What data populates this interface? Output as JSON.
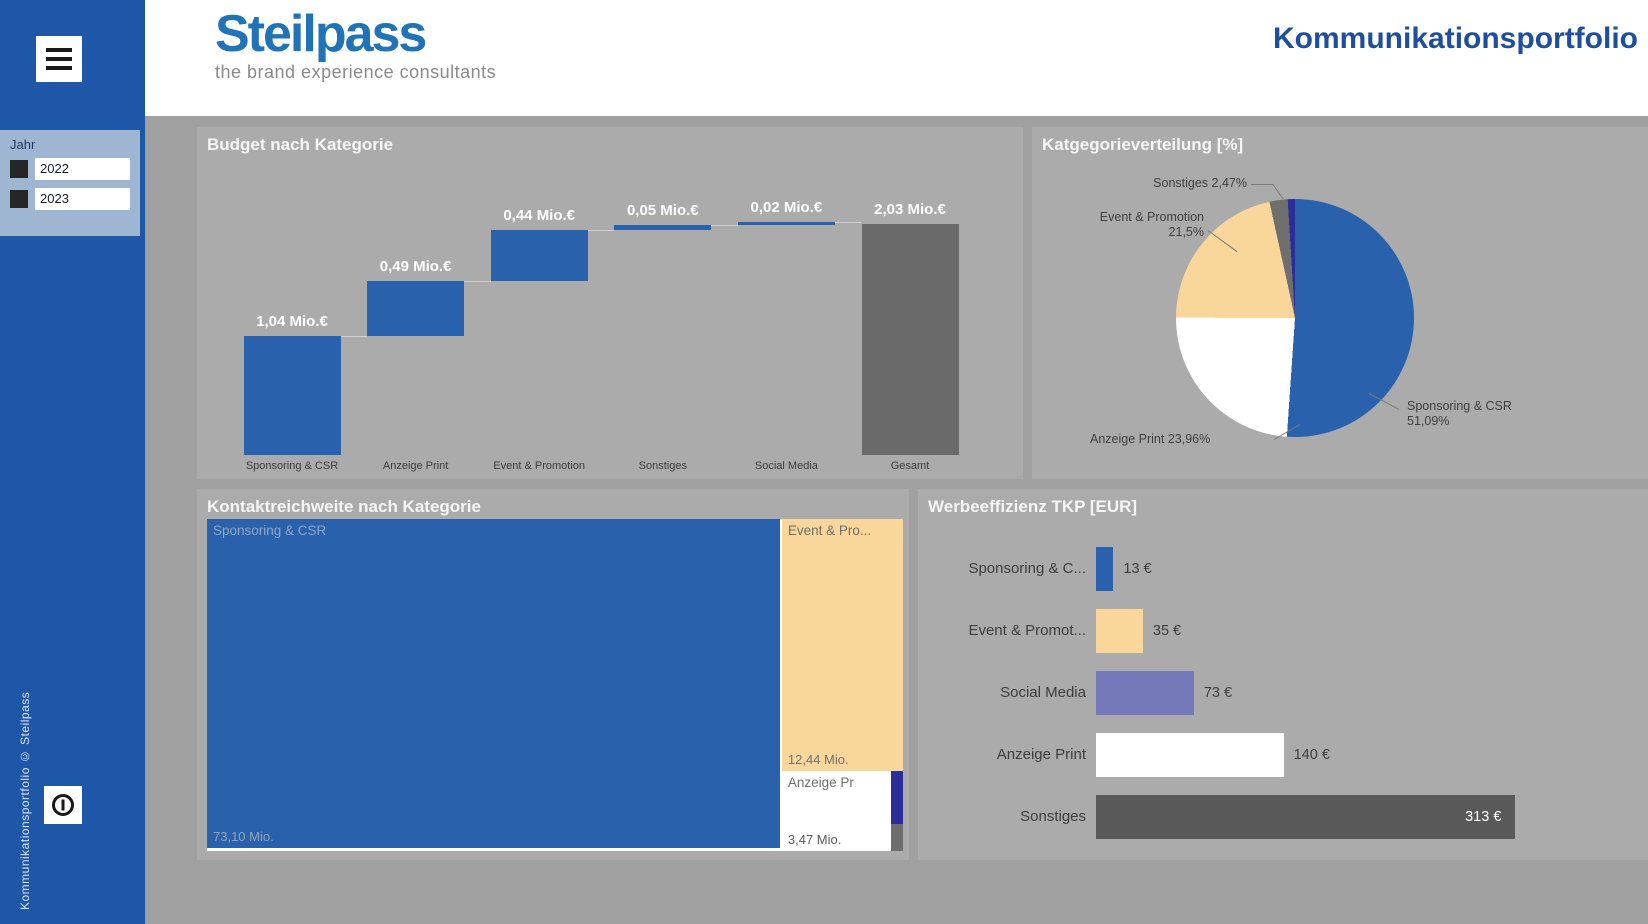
{
  "header": {
    "logo_text": "Steilpass",
    "logo_tagline": "the brand experience consultants",
    "report_title": "Kommunikationsportfolio"
  },
  "sidebar": {
    "slicer": {
      "label": "Jahr",
      "options": [
        {
          "label": "2022",
          "checked": false
        },
        {
          "label": "2023",
          "checked": false
        }
      ]
    },
    "footer_text": "Kommunikationsportfolio © Steilpass"
  },
  "colors": {
    "sidebar_blue": "#1F57A8",
    "accent_blue": "#2A61AC",
    "cream": "#F9D79B",
    "purple": "#7579BA",
    "navy": "#2B2E99",
    "total_gray": "#6A6A6A",
    "dark_gray": "#595959",
    "pie_gray": "#6E6E6E",
    "title_navy": "#1F4E9F",
    "logo_blue": "#2173B8",
    "slicer_bg": "#9FB6D2"
  },
  "chart_data": [
    {
      "type": "bar",
      "subtype": "waterfall",
      "title": "Budget nach Kategorie",
      "categories": [
        "Sponsoring & CSR",
        "Anzeige Print",
        "Event & Promotion",
        "Sonstiges",
        "Social Media",
        "Gesamt"
      ],
      "values": [
        1.04,
        0.49,
        0.44,
        0.05,
        0.02,
        2.03
      ],
      "value_labels": [
        "1,04 Mio.€",
        "0,49 Mio.€",
        "0,44 Mio.€",
        "0,05 Mio.€",
        "0,02 Mio.€",
        "2,03 Mio.€"
      ],
      "is_total": [
        false,
        false,
        false,
        false,
        false,
        true
      ],
      "bar_colors": [
        "#2A61AC",
        "#2A61AC",
        "#2A61AC",
        "#2A61AC",
        "#2A61AC",
        "#6A6A6A"
      ],
      "unit": "Mio.€",
      "ylim": [
        0,
        2.03
      ],
      "grid": false,
      "legend": "none"
    },
    {
      "type": "pie",
      "title": "Katgegorieverteilung [%]",
      "slices": [
        {
          "label": "Sponsoring & CSR",
          "value": 51.09,
          "pct_label": "51,09%",
          "color": "#2A61AC"
        },
        {
          "label": "Anzeige Print",
          "value": 23.96,
          "pct_label": "23,96%",
          "color": "#FFFFFF"
        },
        {
          "label": "Event & Promotion",
          "value": 21.5,
          "pct_label": "21,5%",
          "color": "#F9D79B"
        },
        {
          "label": "Sonstiges",
          "value": 2.47,
          "pct_label": "2,47%",
          "color": "#6E6E6E"
        },
        {
          "label": "Social Media",
          "value": 0.98,
          "pct_label": "",
          "color": "#2B2E99"
        }
      ],
      "legend": "none"
    },
    {
      "type": "treemap",
      "title": "Kontaktreichweite nach Kategorie",
      "tiles": [
        {
          "label": "Sponsoring & CSR",
          "value_label": "73,10 Mio.",
          "color": "#2A61AC"
        },
        {
          "label": "Event & Pro...",
          "value_label": "12,44 Mio.",
          "color": "#F9D79B"
        },
        {
          "label": "Anzeige Pr",
          "value_label": "3,47 Mio.",
          "color": "#FFFFFF"
        },
        {
          "label": "",
          "value_label": "",
          "color": "#2B2E99"
        },
        {
          "label": "",
          "value_label": "",
          "color": "#6E6E6E"
        }
      ],
      "unit": "Mio."
    },
    {
      "type": "bar",
      "orientation": "horizontal",
      "title": "Werbeeffizienz TKP [EUR]",
      "categories": [
        "Sponsoring & C...",
        "Event & Promot...",
        "Social Media",
        "Anzeige Print",
        "Sonstiges"
      ],
      "values": [
        13,
        35,
        73,
        140,
        313
      ],
      "value_labels": [
        "13 €",
        "35 €",
        "73 €",
        "140 €",
        "313 €"
      ],
      "bar_colors": [
        "#2A61AC",
        "#F9D79B",
        "#7579BA",
        "#FFFFFF",
        "#595959"
      ],
      "xlim": [
        0,
        313
      ],
      "grid": false,
      "legend": "none"
    }
  ]
}
